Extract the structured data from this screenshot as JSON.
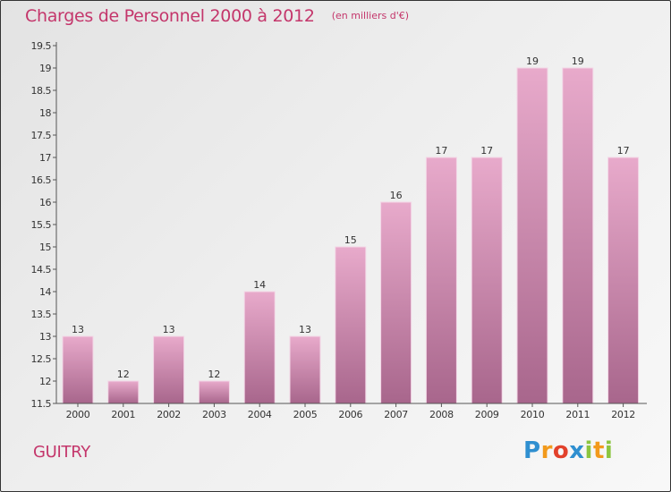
{
  "header": {
    "title": "Charges de Personnel 2000 à 2012",
    "unit": "(en milliers d'€)"
  },
  "footer": {
    "commune": "GUITRY",
    "logo_text": "Proxiti",
    "logo_letters": [
      {
        "ch": "P",
        "color": "#2f8fd0"
      },
      {
        "ch": "r",
        "color": "#f29a1c"
      },
      {
        "ch": "o",
        "color": "#e2412b"
      },
      {
        "ch": "x",
        "color": "#2f8fd0"
      },
      {
        "ch": "i",
        "color": "#8cc540"
      },
      {
        "ch": "t",
        "color": "#f29a1c"
      },
      {
        "ch": "i",
        "color": "#8cc540"
      }
    ]
  },
  "colors": {
    "title": "#c4366b",
    "bar_top": "#e8aacb",
    "bar_bottom": "#a8668c",
    "axis": "#555555",
    "tick_text": "#333333"
  },
  "chart_data": {
    "type": "bar",
    "categories": [
      "2000",
      "2001",
      "2002",
      "2003",
      "2004",
      "2005",
      "2006",
      "2007",
      "2008",
      "2009",
      "2010",
      "2011",
      "2012"
    ],
    "values": [
      13,
      12,
      13,
      12,
      14,
      13,
      15,
      16,
      17,
      17,
      19,
      19,
      17
    ],
    "data_labels": [
      "13",
      "12",
      "13",
      "12",
      "14",
      "13",
      "15",
      "16",
      "17",
      "17",
      "19",
      "19",
      "17"
    ],
    "ylim": [
      11.5,
      19.5
    ],
    "yticks": [
      11.5,
      12,
      12.5,
      13,
      13.5,
      14,
      14.5,
      15,
      15.5,
      16,
      16.5,
      17,
      17.5,
      18,
      18.5,
      19,
      19.5
    ],
    "ytick_labels": [
      "11.5",
      "12",
      "12.5",
      "13",
      "13.5",
      "14",
      "14.5",
      "15",
      "15.5",
      "16",
      "16.5",
      "17",
      "17.5",
      "18",
      "18.5",
      "19",
      "19.5"
    ],
    "title": "Charges de Personnel 2000 à 2012",
    "xlabel": "",
    "ylabel": "",
    "grid": false,
    "legend": "none"
  }
}
